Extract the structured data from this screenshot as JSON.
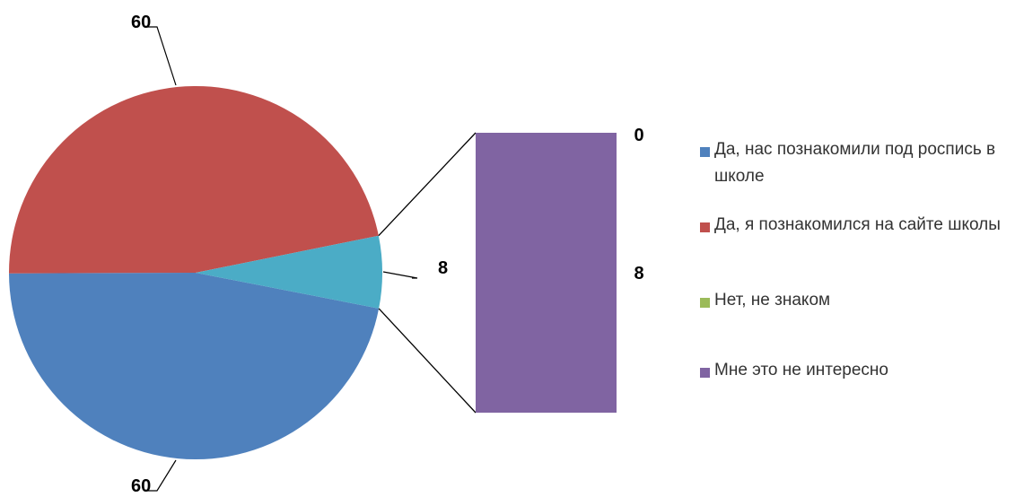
{
  "chart_data": {
    "type": "pie",
    "variant": "bar-of-pie",
    "series": [
      {
        "values": [
          60,
          60,
          8
        ],
        "labels": [
          "60",
          "60",
          "8"
        ],
        "colors": [
          "#4F81BD",
          "#C0504D",
          "#4BACC6"
        ]
      }
    ],
    "secondary_bar": {
      "categories": [
        "Нет, не знаком",
        "Мне это не интересно"
      ],
      "values": [
        0,
        8
      ],
      "labels": [
        "0",
        "8"
      ],
      "colors": [
        "#9BBB59",
        "#8064A2"
      ]
    },
    "legend": {
      "position": "right",
      "entries": [
        {
          "label": "Да, нас познакомили под роспись в школе",
          "color": "#4F81BD"
        },
        {
          "label": "Да, я познакомился на сайте школы",
          "color": "#C0504D"
        },
        {
          "label": "Нет, не знаком",
          "color": "#9BBB59"
        },
        {
          "label": "Мне это не интересно",
          "color": "#8064A2"
        }
      ]
    }
  }
}
